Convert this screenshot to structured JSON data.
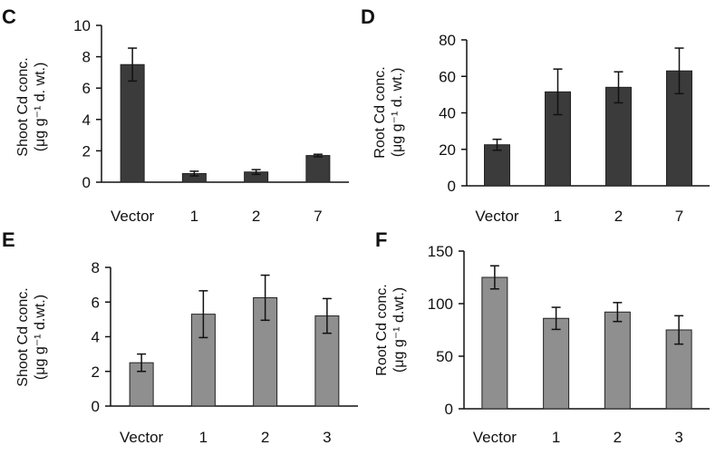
{
  "chart_data": [
    {
      "type": "bar",
      "panel": "C",
      "categories": [
        "Vector",
        "1",
        "2",
        "7"
      ],
      "values": [
        7.5,
        0.55,
        0.65,
        1.7
      ],
      "errors": [
        1.05,
        0.15,
        0.15,
        0.08
      ],
      "ylabel_lines": [
        "Shoot Cd conc.",
        "(μg g⁻¹ d. wt.)"
      ],
      "ylim": [
        0,
        10
      ],
      "yticks": [
        0,
        2,
        4,
        6,
        8,
        10
      ],
      "color": "#3b3b3b",
      "grid": false
    },
    {
      "type": "bar",
      "panel": "D",
      "categories": [
        "Vector",
        "1",
        "2",
        "7"
      ],
      "values": [
        22.5,
        51.5,
        54,
        63
      ],
      "errors": [
        3,
        12.5,
        8.5,
        12.5
      ],
      "ylabel_lines": [
        "Root Cd conc.",
        "(μg g⁻¹ d. wt.)"
      ],
      "ylim": [
        0,
        80
      ],
      "yticks": [
        0,
        20,
        40,
        60,
        80
      ],
      "color": "#3b3b3b",
      "grid": false
    },
    {
      "type": "bar",
      "panel": "E",
      "categories": [
        "Vector",
        "1",
        "2",
        "3"
      ],
      "values": [
        2.5,
        5.3,
        6.25,
        5.2
      ],
      "errors": [
        0.5,
        1.35,
        1.3,
        1.0
      ],
      "ylabel_lines": [
        "Shoot Cd conc.",
        "(μg g⁻¹ d.wt.)"
      ],
      "ylim": [
        0,
        8
      ],
      "yticks": [
        0,
        2,
        4,
        6,
        8
      ],
      "color": "#8f8f8f",
      "grid": false
    },
    {
      "type": "bar",
      "panel": "F",
      "categories": [
        "Vector",
        "1",
        "2",
        "3"
      ],
      "values": [
        125,
        86,
        92,
        75
      ],
      "errors": [
        11,
        10.5,
        9,
        13.5
      ],
      "ylabel_lines": [
        "Root Cd conc.",
        "(μg g⁻¹ d.wt.)"
      ],
      "ylim": [
        0,
        150
      ],
      "yticks": [
        0,
        50,
        100,
        150
      ],
      "color": "#8f8f8f",
      "grid": false
    }
  ]
}
